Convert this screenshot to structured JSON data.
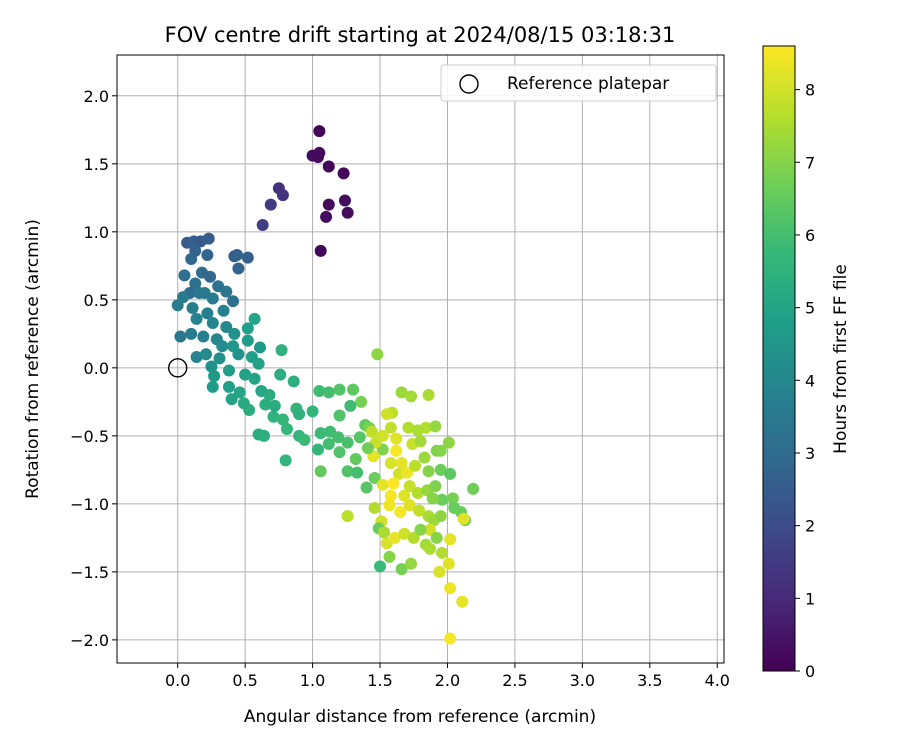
{
  "chart_data": {
    "type": "scatter",
    "title": "FOV centre drift starting at 2024/08/15 03:18:31",
    "xlabel": "Angular distance from reference (arcmin)",
    "ylabel": "Rotation from reference (arcmin)",
    "xlim": [
      -0.45,
      4.05
    ],
    "ylim": [
      -2.17,
      2.3
    ],
    "xticks": [
      0.0,
      0.5,
      1.0,
      1.5,
      2.0,
      2.5,
      3.0,
      3.5,
      4.0
    ],
    "xtick_labels": [
      "0.0",
      "0.5",
      "1.0",
      "1.5",
      "2.0",
      "2.5",
      "3.0",
      "3.5",
      "4.0"
    ],
    "yticks": [
      -2.0,
      -1.5,
      -1.0,
      -0.5,
      0.0,
      0.5,
      1.0,
      1.5,
      2.0
    ],
    "ytick_labels": [
      "−2.0",
      "−1.5",
      "−1.0",
      "−0.5",
      "0.0",
      "0.5",
      "1.0",
      "1.5",
      "2.0"
    ],
    "grid": true,
    "legend": {
      "placement": "top-right",
      "entries": [
        "Reference platepar"
      ]
    },
    "reference_point": {
      "name": "Reference platepar",
      "x": 0.0,
      "y": 0.0
    },
    "colorbar": {
      "label": "Hours from first FF file",
      "range": [
        0,
        8.6
      ],
      "ticks": [
        0,
        1,
        2,
        3,
        4,
        5,
        6,
        7,
        8
      ],
      "tick_labels": [
        "0",
        "1",
        "2",
        "3",
        "4",
        "5",
        "6",
        "7",
        "8"
      ],
      "colormap": "viridis"
    },
    "colors": {
      "viridis": [
        "#440154",
        "#482878",
        "#3e4989",
        "#31688e",
        "#26828e",
        "#1f9e89",
        "#35b779",
        "#6ece58",
        "#b5de2b",
        "#fde725"
      ]
    },
    "points": [
      [
        1.05,
        1.74,
        0.1
      ],
      [
        1.05,
        1.58,
        0.2
      ],
      [
        1.0,
        1.56,
        0.3
      ],
      [
        1.04,
        1.55,
        0.2
      ],
      [
        1.12,
        1.48,
        0.1
      ],
      [
        1.23,
        1.43,
        0.15
      ],
      [
        1.24,
        1.23,
        0.3
      ],
      [
        1.12,
        1.2,
        0.2
      ],
      [
        1.26,
        1.14,
        0.25
      ],
      [
        1.1,
        1.11,
        0.3
      ],
      [
        1.06,
        0.86,
        0.15
      ],
      [
        0.75,
        1.32,
        1.2
      ],
      [
        0.78,
        1.27,
        1.3
      ],
      [
        0.69,
        1.2,
        1.5
      ],
      [
        0.63,
        1.05,
        1.6
      ],
      [
        0.07,
        0.92,
        2.5
      ],
      [
        0.12,
        0.93,
        2.6
      ],
      [
        0.17,
        0.93,
        2.4
      ],
      [
        0.23,
        0.95,
        2.5
      ],
      [
        0.13,
        0.86,
        2.7
      ],
      [
        0.22,
        0.83,
        2.8
      ],
      [
        0.42,
        0.82,
        2.5
      ],
      [
        0.52,
        0.81,
        2.6
      ],
      [
        0.44,
        0.83,
        2.7
      ],
      [
        0.45,
        0.73,
        2.8
      ],
      [
        0.1,
        0.8,
        2.9
      ],
      [
        0.18,
        0.7,
        3.0
      ],
      [
        0.05,
        0.68,
        3.1
      ],
      [
        0.24,
        0.67,
        2.9
      ],
      [
        0.13,
        0.62,
        3.2
      ],
      [
        0.3,
        0.6,
        3.3
      ],
      [
        0.09,
        0.55,
        3.0
      ],
      [
        0.16,
        0.55,
        3.4
      ],
      [
        0.2,
        0.55,
        3.5
      ],
      [
        0.36,
        0.56,
        3.4
      ],
      [
        0.26,
        0.51,
        3.6
      ],
      [
        0.41,
        0.49,
        3.2
      ],
      [
        0.04,
        0.52,
        3.5
      ],
      [
        0.0,
        0.46,
        3.6
      ],
      [
        0.11,
        0.44,
        3.7
      ],
      [
        0.22,
        0.4,
        3.7
      ],
      [
        0.34,
        0.42,
        3.8
      ],
      [
        0.14,
        0.36,
        3.8
      ],
      [
        0.26,
        0.33,
        3.9
      ],
      [
        0.36,
        0.3,
        4.0
      ],
      [
        0.02,
        0.23,
        3.4
      ],
      [
        0.1,
        0.25,
        3.6
      ],
      [
        0.19,
        0.23,
        3.7
      ],
      [
        0.29,
        0.21,
        3.9
      ],
      [
        0.33,
        0.16,
        4.1
      ],
      [
        0.42,
        0.25,
        4.3
      ],
      [
        0.14,
        0.08,
        3.9
      ],
      [
        0.21,
        0.1,
        4.1
      ],
      [
        0.31,
        0.07,
        4.3
      ],
      [
        0.45,
        0.1,
        4.4
      ],
      [
        0.41,
        0.16,
        4.5
      ],
      [
        0.52,
        0.2,
        4.7
      ],
      [
        0.57,
        0.36,
        5.0
      ],
      [
        0.52,
        0.29,
        4.8
      ],
      [
        0.61,
        0.15,
        4.6
      ],
      [
        0.55,
        0.08,
        4.8
      ],
      [
        0.6,
        0.03,
        4.9
      ],
      [
        0.25,
        0.01,
        4.4
      ],
      [
        0.27,
        -0.06,
        4.6
      ],
      [
        0.38,
        -0.02,
        4.7
      ],
      [
        0.5,
        -0.05,
        4.9
      ],
      [
        0.57,
        -0.08,
        5.0
      ],
      [
        0.38,
        -0.14,
        4.8
      ],
      [
        0.46,
        -0.18,
        5.1
      ],
      [
        0.26,
        -0.14,
        4.7
      ],
      [
        0.4,
        -0.23,
        5.0
      ],
      [
        0.49,
        -0.26,
        5.2
      ],
      [
        0.53,
        -0.31,
        5.3
      ],
      [
        0.62,
        -0.17,
        5.1
      ],
      [
        0.68,
        -0.2,
        5.3
      ],
      [
        0.76,
        -0.05,
        5.4
      ],
      [
        0.77,
        0.13,
        5.5
      ],
      [
        0.65,
        -0.27,
        5.4
      ],
      [
        0.71,
        -0.36,
        5.5
      ],
      [
        0.78,
        -0.38,
        5.6
      ],
      [
        0.72,
        -0.28,
        5.3
      ],
      [
        0.86,
        -0.1,
        5.4
      ],
      [
        0.88,
        -0.3,
        5.6
      ],
      [
        0.9,
        -0.34,
        5.5
      ],
      [
        0.81,
        -0.45,
        5.7
      ],
      [
        0.9,
        -0.5,
        5.7
      ],
      [
        0.94,
        -0.53,
        5.8
      ],
      [
        0.6,
        -0.49,
        5.3
      ],
      [
        0.64,
        -0.5,
        5.4
      ],
      [
        0.8,
        -0.68,
        5.6
      ],
      [
        1.0,
        -0.32,
        5.7
      ],
      [
        1.05,
        -0.17,
        5.9
      ],
      [
        1.12,
        -0.18,
        6.0
      ],
      [
        1.2,
        -0.16,
        6.2
      ],
      [
        1.3,
        -0.16,
        6.4
      ],
      [
        1.36,
        -0.25,
        6.8
      ],
      [
        1.06,
        -0.48,
        5.8
      ],
      [
        1.13,
        -0.47,
        5.9
      ],
      [
        1.19,
        -0.51,
        6.0
      ],
      [
        1.12,
        -0.56,
        6.0
      ],
      [
        1.2,
        -0.62,
        6.2
      ],
      [
        1.26,
        -0.55,
        6.1
      ],
      [
        1.35,
        -0.51,
        6.3
      ],
      [
        1.39,
        -0.42,
        6.5
      ],
      [
        1.06,
        -0.76,
        6.5
      ],
      [
        1.26,
        -0.76,
        6.2
      ],
      [
        1.32,
        -0.67,
        6.5
      ],
      [
        1.4,
        -0.88,
        6.3
      ],
      [
        1.46,
        -0.81,
        6.6
      ],
      [
        1.52,
        -0.6,
        6.9
      ],
      [
        1.42,
        -0.44,
        6.8
      ],
      [
        1.48,
        0.1,
        7.1
      ],
      [
        1.66,
        -0.18,
        7.3
      ],
      [
        1.73,
        -0.21,
        7.4
      ],
      [
        1.86,
        -0.2,
        7.5
      ],
      [
        1.84,
        -0.44,
        7.6
      ],
      [
        1.59,
        -0.33,
        7.7
      ],
      [
        1.44,
        -0.47,
        7.8
      ],
      [
        1.47,
        -0.55,
        7.9
      ],
      [
        1.52,
        -0.5,
        8.0
      ],
      [
        1.58,
        -0.44,
        7.8
      ],
      [
        1.62,
        -0.52,
        8.2
      ],
      [
        1.45,
        -0.65,
        8.3
      ],
      [
        1.58,
        -0.7,
        8.1
      ],
      [
        1.64,
        -0.78,
        8.0
      ],
      [
        1.71,
        -0.44,
        7.6
      ],
      [
        1.78,
        -0.46,
        7.5
      ],
      [
        1.74,
        -0.56,
        7.9
      ],
      [
        1.8,
        -0.54,
        7.4
      ],
      [
        1.91,
        -0.43,
        7.2
      ],
      [
        1.66,
        -0.7,
        8.3
      ],
      [
        1.7,
        -0.77,
        8.4
      ],
      [
        1.76,
        -0.72,
        7.7
      ],
      [
        1.83,
        -0.66,
        7.3
      ],
      [
        1.86,
        -0.76,
        7.0
      ],
      [
        1.92,
        -0.61,
        6.9
      ],
      [
        1.95,
        -0.61,
        7.0
      ],
      [
        2.01,
        -0.55,
        7.1
      ],
      [
        1.95,
        -0.75,
        6.6
      ],
      [
        2.02,
        -0.78,
        6.4
      ],
      [
        2.19,
        -0.89,
        6.7
      ],
      [
        1.52,
        -0.86,
        8.3
      ],
      [
        1.58,
        -0.94,
        8.5
      ],
      [
        1.6,
        -0.85,
        8.6
      ],
      [
        1.68,
        -0.94,
        8.2
      ],
      [
        1.72,
        -0.87,
        7.9
      ],
      [
        1.78,
        -0.92,
        7.6
      ],
      [
        1.85,
        -0.9,
        7.2
      ],
      [
        1.91,
        -0.87,
        6.9
      ],
      [
        1.96,
        -0.97,
        6.6
      ],
      [
        2.04,
        -0.96,
        6.8
      ],
      [
        2.05,
        -1.03,
        6.6
      ],
      [
        1.89,
        -0.96,
        7.0
      ],
      [
        1.46,
        -1.03,
        7.6
      ],
      [
        1.51,
        -1.13,
        8.0
      ],
      [
        1.57,
        -1.01,
        8.4
      ],
      [
        1.65,
        -1.06,
        8.5
      ],
      [
        1.72,
        -1.01,
        8.2
      ],
      [
        1.79,
        -1.05,
        7.8
      ],
      [
        1.86,
        -1.09,
        7.5
      ],
      [
        1.9,
        -1.12,
        7.3
      ],
      [
        1.95,
        -1.09,
        7.1
      ],
      [
        2.1,
        -1.06,
        6.6
      ],
      [
        2.13,
        -1.12,
        6.5
      ],
      [
        1.87,
        -1.19,
        8.0
      ],
      [
        1.49,
        -1.18,
        6.6
      ],
      [
        1.53,
        -1.21,
        7.5
      ],
      [
        1.55,
        -1.29,
        8.1
      ],
      [
        1.61,
        -1.25,
        8.3
      ],
      [
        1.68,
        -1.22,
        8.0
      ],
      [
        1.75,
        -1.25,
        7.6
      ],
      [
        1.8,
        -1.19,
        7.0
      ],
      [
        1.84,
        -1.3,
        7.4
      ],
      [
        1.92,
        -1.25,
        7.0
      ],
      [
        2.02,
        -1.26,
        8.3
      ],
      [
        2.12,
        -1.11,
        8.2
      ],
      [
        1.87,
        -1.33,
        7.5
      ],
      [
        1.96,
        -1.36,
        7.6
      ],
      [
        1.57,
        -1.39,
        7.0
      ],
      [
        1.66,
        -1.48,
        6.8
      ],
      [
        1.73,
        -1.44,
        7.2
      ],
      [
        1.94,
        -1.5,
        8.1
      ],
      [
        2.01,
        -1.44,
        8.2
      ],
      [
        1.5,
        -1.46,
        5.8
      ],
      [
        2.02,
        -1.62,
        8.4
      ],
      [
        2.11,
        -1.72,
        8.3
      ],
      [
        2.02,
        -1.99,
        8.5
      ],
      [
        1.62,
        -0.61,
        8.5
      ],
      [
        1.55,
        -0.34,
        8.0
      ],
      [
        1.28,
        -0.28,
        5.9
      ],
      [
        1.2,
        -0.35,
        6.2
      ],
      [
        1.41,
        -0.59,
        6.7
      ],
      [
        1.33,
        -0.77,
        6.0
      ],
      [
        1.04,
        -0.6,
        5.7
      ],
      [
        1.26,
        -1.09,
        7.7
      ]
    ]
  }
}
